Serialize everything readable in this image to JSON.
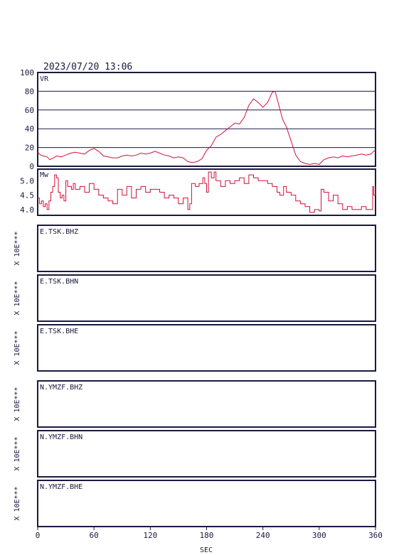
{
  "header": {
    "datetime": "2023/07/20 13:06"
  },
  "chart_data": [
    {
      "type": "line",
      "panel": "VR",
      "label": "VR",
      "ylim": [
        0,
        100
      ],
      "yticks": [
        "100",
        "80",
        "60",
        "40",
        "20",
        "0"
      ],
      "grid": true,
      "color": "#d0103a",
      "x": [
        0,
        3,
        6,
        10,
        13,
        17,
        20,
        25,
        30,
        35,
        40,
        45,
        50,
        55,
        60,
        65,
        70,
        75,
        80,
        85,
        90,
        95,
        100,
        105,
        110,
        115,
        120,
        125,
        130,
        135,
        140,
        145,
        150,
        155,
        160,
        165,
        170,
        175,
        180,
        185,
        190,
        195,
        200,
        205,
        210,
        215,
        220,
        225,
        230,
        235,
        240,
        245,
        250,
        253,
        257,
        261,
        265,
        270,
        275,
        280,
        285,
        290,
        295,
        300,
        305,
        310,
        315,
        320,
        325,
        330,
        335,
        340,
        345,
        350,
        355,
        358,
        360
      ],
      "y": [
        15,
        12,
        11,
        10,
        7,
        9,
        11,
        10,
        12,
        14,
        15,
        14,
        13,
        17,
        19,
        16,
        11,
        10,
        9,
        9,
        11,
        12,
        11,
        12,
        14,
        13,
        14,
        16,
        14,
        12,
        11,
        9,
        10,
        9,
        5,
        4,
        5,
        8,
        17,
        22,
        31,
        34,
        38,
        42,
        46,
        45,
        52,
        65,
        72,
        68,
        63,
        68,
        79,
        80,
        65,
        50,
        42,
        27,
        12,
        5,
        3,
        2,
        3,
        2,
        7,
        9,
        10,
        9,
        11,
        10,
        11,
        12,
        13,
        12,
        13,
        16,
        17
      ],
      "xlim": [
        0,
        360
      ]
    },
    {
      "type": "line",
      "panel": "Mw",
      "label": "Mw",
      "ylim": [
        3.8,
        5.4
      ],
      "yticks": [
        "5.0",
        "4.5",
        "4.0"
      ],
      "grid": false,
      "color": "#d0103a",
      "x": [
        0,
        2,
        4,
        6,
        8,
        10,
        12,
        14,
        16,
        18,
        20,
        22,
        24,
        26,
        28,
        30,
        32,
        34,
        36,
        38,
        40,
        45,
        50,
        55,
        60,
        65,
        70,
        75,
        80,
        85,
        90,
        95,
        100,
        105,
        110,
        115,
        120,
        125,
        130,
        135,
        140,
        145,
        150,
        155,
        160,
        162,
        164,
        168,
        172,
        176,
        178,
        180,
        182,
        185,
        188,
        190,
        195,
        200,
        205,
        210,
        215,
        220,
        225,
        230,
        235,
        240,
        245,
        250,
        255,
        258,
        262,
        265,
        270,
        275,
        280,
        285,
        290,
        295,
        300,
        302,
        305,
        310,
        315,
        320,
        325,
        330,
        335,
        340,
        345,
        350,
        355,
        357,
        358,
        360
      ],
      "y": [
        4.4,
        4.2,
        4.3,
        4.1,
        4.2,
        4.0,
        4.3,
        4.6,
        4.8,
        5.2,
        5.1,
        4.6,
        4.4,
        4.5,
        4.3,
        5.0,
        4.8,
        4.8,
        4.7,
        4.9,
        4.7,
        4.8,
        4.6,
        4.9,
        4.7,
        4.5,
        4.4,
        4.3,
        4.2,
        4.7,
        4.5,
        4.8,
        4.4,
        4.7,
        4.8,
        4.6,
        4.7,
        4.7,
        4.6,
        4.4,
        4.5,
        4.4,
        4.2,
        4.4,
        4.0,
        4.2,
        4.9,
        4.8,
        4.9,
        5.1,
        4.9,
        4.6,
        5.3,
        5.1,
        5.3,
        5.0,
        4.8,
        5.0,
        4.9,
        5.0,
        5.1,
        4.9,
        5.2,
        5.1,
        5.0,
        5.0,
        4.9,
        4.8,
        4.6,
        4.5,
        4.8,
        4.6,
        4.5,
        4.3,
        4.2,
        4.1,
        3.9,
        4.0,
        3.95,
        4.7,
        4.6,
        4.3,
        4.5,
        4.2,
        4.0,
        4.1,
        4.0,
        4.0,
        4.1,
        4.0,
        4.0,
        4.8,
        4.5,
        4.8
      ],
      "xlim": [
        0,
        360
      ]
    },
    {
      "type": "line",
      "panel": "waveforms",
      "xlim": [
        0,
        360
      ],
      "xticks": [
        "0",
        "60",
        "120",
        "180",
        "240",
        "300",
        "360"
      ],
      "xlabel": "SEC",
      "channels": [
        {
          "name": "E.TSK.BHZ",
          "scale": "X 10E***"
        },
        {
          "name": "E.TSK.BHN",
          "scale": "X 10E***"
        },
        {
          "name": "E.TSK.BHE",
          "scale": "X 10E***"
        },
        {
          "name": "N.YMZF.BHZ",
          "scale": "X 10E***"
        },
        {
          "name": "N.YMZF.BHN",
          "scale": "X 10E***"
        },
        {
          "name": "N.YMZF.BHE",
          "scale": "X 10E***"
        }
      ]
    }
  ]
}
